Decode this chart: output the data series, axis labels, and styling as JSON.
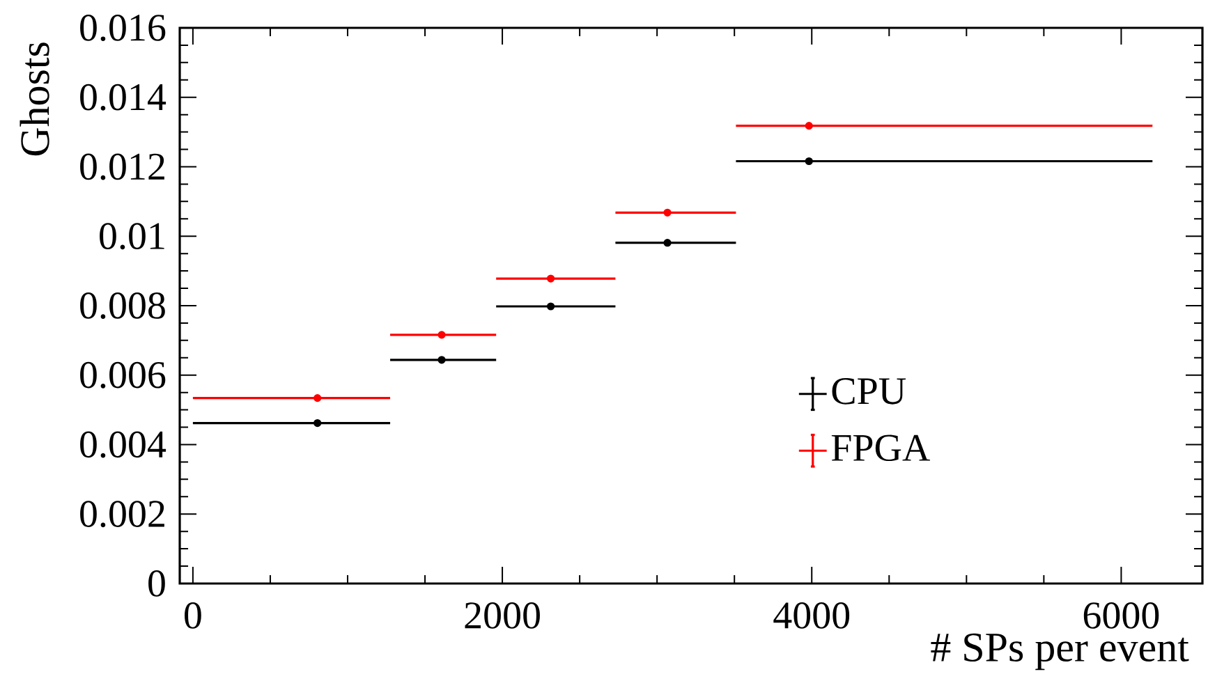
{
  "chart_data": {
    "type": "scatter",
    "xlabel": "# SPs per event",
    "ylabel": "Ghosts",
    "xlim": [
      -85,
      6525
    ],
    "xticks": [
      0,
      2000,
      4000,
      6000
    ],
    "ylim": [
      0,
      0.016
    ],
    "yticks": [
      0,
      0.002,
      0.004,
      0.006,
      0.008,
      0.01,
      0.012,
      0.014,
      0.016
    ],
    "x": [
      805,
      1608,
      2313,
      3067,
      3982
    ],
    "legend": "right",
    "series": [
      {
        "name": "CPU",
        "color": "#000000",
        "values": [
          0.00462,
          0.00644,
          0.00798,
          0.00981,
          0.01216
        ],
        "errors": [
          5e-05,
          5e-05,
          5e-05,
          5e-05,
          5e-05
        ],
        "xerrors": [
          [
            0,
            1275
          ],
          [
            1275,
            1960
          ],
          [
            1960,
            2731
          ],
          [
            2731,
            3510
          ],
          [
            3510,
            6202
          ]
        ]
      },
      {
        "name": "FPGA",
        "color": "#ff0000",
        "values": [
          0.00534,
          0.00716,
          0.00878,
          0.01068,
          0.01318
        ],
        "errors": [
          5e-05,
          5e-05,
          5e-05,
          5e-05,
          5e-05
        ],
        "xerrors": [
          [
            0,
            1275
          ],
          [
            1275,
            1960
          ],
          [
            1960,
            2731
          ],
          [
            2731,
            3510
          ],
          [
            3510,
            6202
          ]
        ]
      }
    ]
  }
}
